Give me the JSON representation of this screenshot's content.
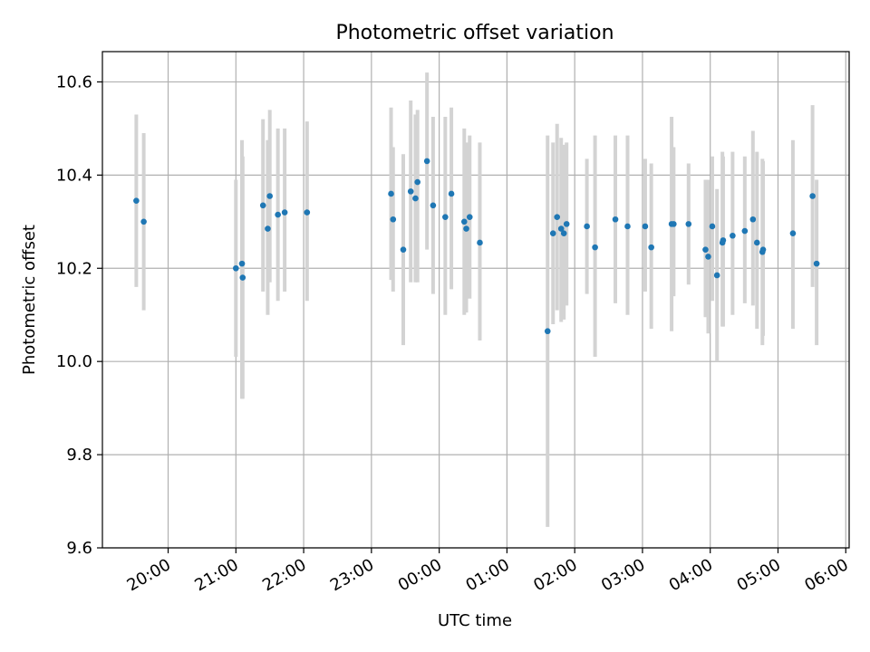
{
  "chart_data": {
    "type": "scatter",
    "title": "Photometric offset variation",
    "xlabel": "UTC time",
    "ylabel": "Photometric offset",
    "x_unit": "hours since 00:00 UTC (negative = previous day)",
    "xlim": [
      -4.97,
      6.05
    ],
    "ylim": [
      9.6,
      10.665
    ],
    "grid": true,
    "legend": "none",
    "colors": {
      "points": "#1f77b4",
      "errorbars": "#d3d3d3",
      "grid": "#b0b0b0"
    },
    "x_ticks": [
      {
        "value": -4,
        "label": "20:00"
      },
      {
        "value": -3,
        "label": "21:00"
      },
      {
        "value": -2,
        "label": "22:00"
      },
      {
        "value": -1,
        "label": "23:00"
      },
      {
        "value": 0,
        "label": "00:00"
      },
      {
        "value": 1,
        "label": "01:00"
      },
      {
        "value": 2,
        "label": "02:00"
      },
      {
        "value": 3,
        "label": "03:00"
      },
      {
        "value": 4,
        "label": "04:00"
      },
      {
        "value": 5,
        "label": "05:00"
      },
      {
        "value": 6,
        "label": "06:00"
      }
    ],
    "y_ticks": [
      {
        "value": 9.6,
        "label": "9.6"
      },
      {
        "value": 9.8,
        "label": "9.8"
      },
      {
        "value": 10.0,
        "label": "10.0"
      },
      {
        "value": 10.2,
        "label": "10.2"
      },
      {
        "value": 10.4,
        "label": "10.4"
      },
      {
        "value": 10.6,
        "label": "10.6"
      }
    ],
    "points": [
      {
        "x": -4.47,
        "y": 10.345,
        "lo": 10.16,
        "hi": 10.53
      },
      {
        "x": -4.36,
        "y": 10.3,
        "lo": 10.11,
        "hi": 10.49
      },
      {
        "x": -3.0,
        "y": 10.2,
        "lo": 10.01,
        "hi": 10.39
      },
      {
        "x": -2.91,
        "y": 10.21,
        "lo": 9.92,
        "hi": 10.475
      },
      {
        "x": -2.9,
        "y": 10.18,
        "lo": 9.92,
        "hi": 10.44
      },
      {
        "x": -2.6,
        "y": 10.335,
        "lo": 10.15,
        "hi": 10.52
      },
      {
        "x": -2.53,
        "y": 10.285,
        "lo": 10.1,
        "hi": 10.475
      },
      {
        "x": -2.5,
        "y": 10.355,
        "lo": 10.17,
        "hi": 10.54
      },
      {
        "x": -2.38,
        "y": 10.315,
        "lo": 10.13,
        "hi": 10.5
      },
      {
        "x": -2.28,
        "y": 10.32,
        "lo": 10.15,
        "hi": 10.5
      },
      {
        "x": -1.95,
        "y": 10.32,
        "lo": 10.13,
        "hi": 10.515
      },
      {
        "x": -0.71,
        "y": 10.36,
        "lo": 10.175,
        "hi": 10.545
      },
      {
        "x": -0.68,
        "y": 10.305,
        "lo": 10.15,
        "hi": 10.46
      },
      {
        "x": -0.53,
        "y": 10.24,
        "lo": 10.035,
        "hi": 10.445
      },
      {
        "x": -0.42,
        "y": 10.365,
        "lo": 10.17,
        "hi": 10.56
      },
      {
        "x": -0.35,
        "y": 10.35,
        "lo": 10.17,
        "hi": 10.53
      },
      {
        "x": -0.32,
        "y": 10.385,
        "lo": 10.17,
        "hi": 10.54
      },
      {
        "x": -0.18,
        "y": 10.43,
        "lo": 10.24,
        "hi": 10.62
      },
      {
        "x": -0.09,
        "y": 10.335,
        "lo": 10.145,
        "hi": 10.525
      },
      {
        "x": 0.09,
        "y": 10.31,
        "lo": 10.1,
        "hi": 10.525
      },
      {
        "x": 0.18,
        "y": 10.36,
        "lo": 10.155,
        "hi": 10.545
      },
      {
        "x": 0.37,
        "y": 10.3,
        "lo": 10.1,
        "hi": 10.5
      },
      {
        "x": 0.4,
        "y": 10.285,
        "lo": 10.105,
        "hi": 10.47
      },
      {
        "x": 0.45,
        "y": 10.31,
        "lo": 10.135,
        "hi": 10.485
      },
      {
        "x": 0.6,
        "y": 10.255,
        "lo": 10.045,
        "hi": 10.47
      },
      {
        "x": 1.6,
        "y": 10.065,
        "lo": 9.645,
        "hi": 10.485
      },
      {
        "x": 1.68,
        "y": 10.275,
        "lo": 10.08,
        "hi": 10.47
      },
      {
        "x": 1.74,
        "y": 10.31,
        "lo": 10.11,
        "hi": 10.51
      },
      {
        "x": 1.8,
        "y": 10.285,
        "lo": 10.085,
        "hi": 10.48
      },
      {
        "x": 1.84,
        "y": 10.275,
        "lo": 10.09,
        "hi": 10.465
      },
      {
        "x": 1.88,
        "y": 10.295,
        "lo": 10.12,
        "hi": 10.47
      },
      {
        "x": 2.18,
        "y": 10.29,
        "lo": 10.145,
        "hi": 10.435
      },
      {
        "x": 2.3,
        "y": 10.245,
        "lo": 10.01,
        "hi": 10.485
      },
      {
        "x": 2.6,
        "y": 10.305,
        "lo": 10.125,
        "hi": 10.485
      },
      {
        "x": 2.78,
        "y": 10.29,
        "lo": 10.1,
        "hi": 10.485
      },
      {
        "x": 3.04,
        "y": 10.29,
        "lo": 10.15,
        "hi": 10.435
      },
      {
        "x": 3.13,
        "y": 10.245,
        "lo": 10.07,
        "hi": 10.425
      },
      {
        "x": 3.43,
        "y": 10.295,
        "lo": 10.065,
        "hi": 10.525
      },
      {
        "x": 3.46,
        "y": 10.295,
        "lo": 10.14,
        "hi": 10.46
      },
      {
        "x": 3.68,
        "y": 10.295,
        "lo": 10.165,
        "hi": 10.425
      },
      {
        "x": 3.93,
        "y": 10.24,
        "lo": 10.095,
        "hi": 10.39
      },
      {
        "x": 3.97,
        "y": 10.225,
        "lo": 10.06,
        "hi": 10.39
      },
      {
        "x": 4.03,
        "y": 10.29,
        "lo": 10.13,
        "hi": 10.44
      },
      {
        "x": 4.1,
        "y": 10.185,
        "lo": 10.0,
        "hi": 10.37
      },
      {
        "x": 4.18,
        "y": 10.255,
        "lo": 10.075,
        "hi": 10.45
      },
      {
        "x": 4.19,
        "y": 10.26,
        "lo": 10.075,
        "hi": 10.44
      },
      {
        "x": 4.33,
        "y": 10.27,
        "lo": 10.1,
        "hi": 10.45
      },
      {
        "x": 4.51,
        "y": 10.28,
        "lo": 10.125,
        "hi": 10.44
      },
      {
        "x": 4.63,
        "y": 10.305,
        "lo": 10.12,
        "hi": 10.495
      },
      {
        "x": 4.69,
        "y": 10.255,
        "lo": 10.07,
        "hi": 10.45
      },
      {
        "x": 4.77,
        "y": 10.235,
        "lo": 10.035,
        "hi": 10.435
      },
      {
        "x": 4.78,
        "y": 10.24,
        "lo": 10.055,
        "hi": 10.43
      },
      {
        "x": 5.22,
        "y": 10.275,
        "lo": 10.07,
        "hi": 10.475
      },
      {
        "x": 5.51,
        "y": 10.355,
        "lo": 10.16,
        "hi": 10.55
      },
      {
        "x": 5.57,
        "y": 10.21,
        "lo": 10.035,
        "hi": 10.39
      }
    ]
  }
}
